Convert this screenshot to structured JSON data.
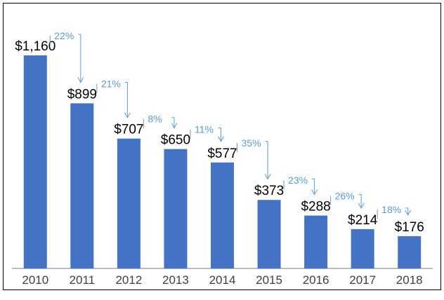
{
  "chart_data": {
    "type": "bar",
    "title": "",
    "xlabel": "",
    "ylabel": "",
    "categories": [
      "2010",
      "2011",
      "2012",
      "2013",
      "2014",
      "2015",
      "2016",
      "2017",
      "2018"
    ],
    "values": [
      1160,
      899,
      707,
      650,
      577,
      373,
      288,
      214,
      176
    ],
    "value_labels": [
      "$1,160",
      "$899",
      "$707",
      "$650",
      "$577",
      "$373",
      "$288",
      "$214",
      "$176"
    ],
    "annotations": [
      "22%",
      "21%",
      "8%",
      "11%",
      "35%",
      "23%",
      "26%",
      "18%"
    ],
    "ylim": [
      0,
      1160
    ],
    "grid": false,
    "legend": "none",
    "colors": {
      "bar": "#4472C4",
      "annotation": "#5B9BD5",
      "axis": "#A6A6A6"
    }
  }
}
